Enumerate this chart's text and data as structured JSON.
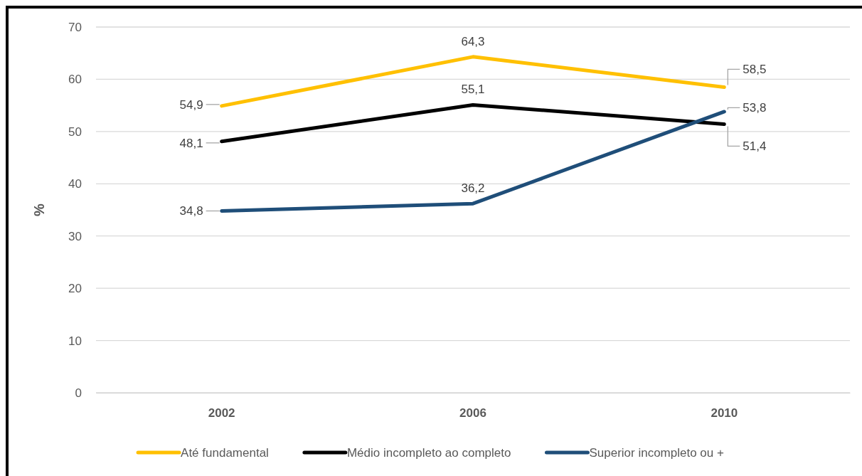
{
  "chart_data": {
    "type": "line",
    "ylabel": "%",
    "categories": [
      "2002",
      "2006",
      "2010"
    ],
    "series": [
      {
        "name": "Até fundamental",
        "color": "#ffc000",
        "values": [
          54.9,
          64.3,
          58.5
        ],
        "value_labels": [
          "54,9",
          "64,3",
          "58,5"
        ]
      },
      {
        "name": "Médio incompleto ao completo",
        "color": "#000000",
        "values": [
          48.1,
          55.1,
          51.4
        ],
        "value_labels": [
          "48,1",
          "55,1",
          "51,4"
        ]
      },
      {
        "name": "Superior incompleto ou +",
        "color": "#1f4e79",
        "values": [
          34.8,
          36.2,
          53.8
        ],
        "value_labels": [
          "34,8",
          "36,2",
          "53,8"
        ]
      }
    ],
    "ylim": [
      0,
      70
    ],
    "yticks": [
      0,
      10,
      20,
      30,
      40,
      50,
      60,
      70
    ],
    "grid": "y",
    "legend": "bottom",
    "line_style": "solid"
  }
}
